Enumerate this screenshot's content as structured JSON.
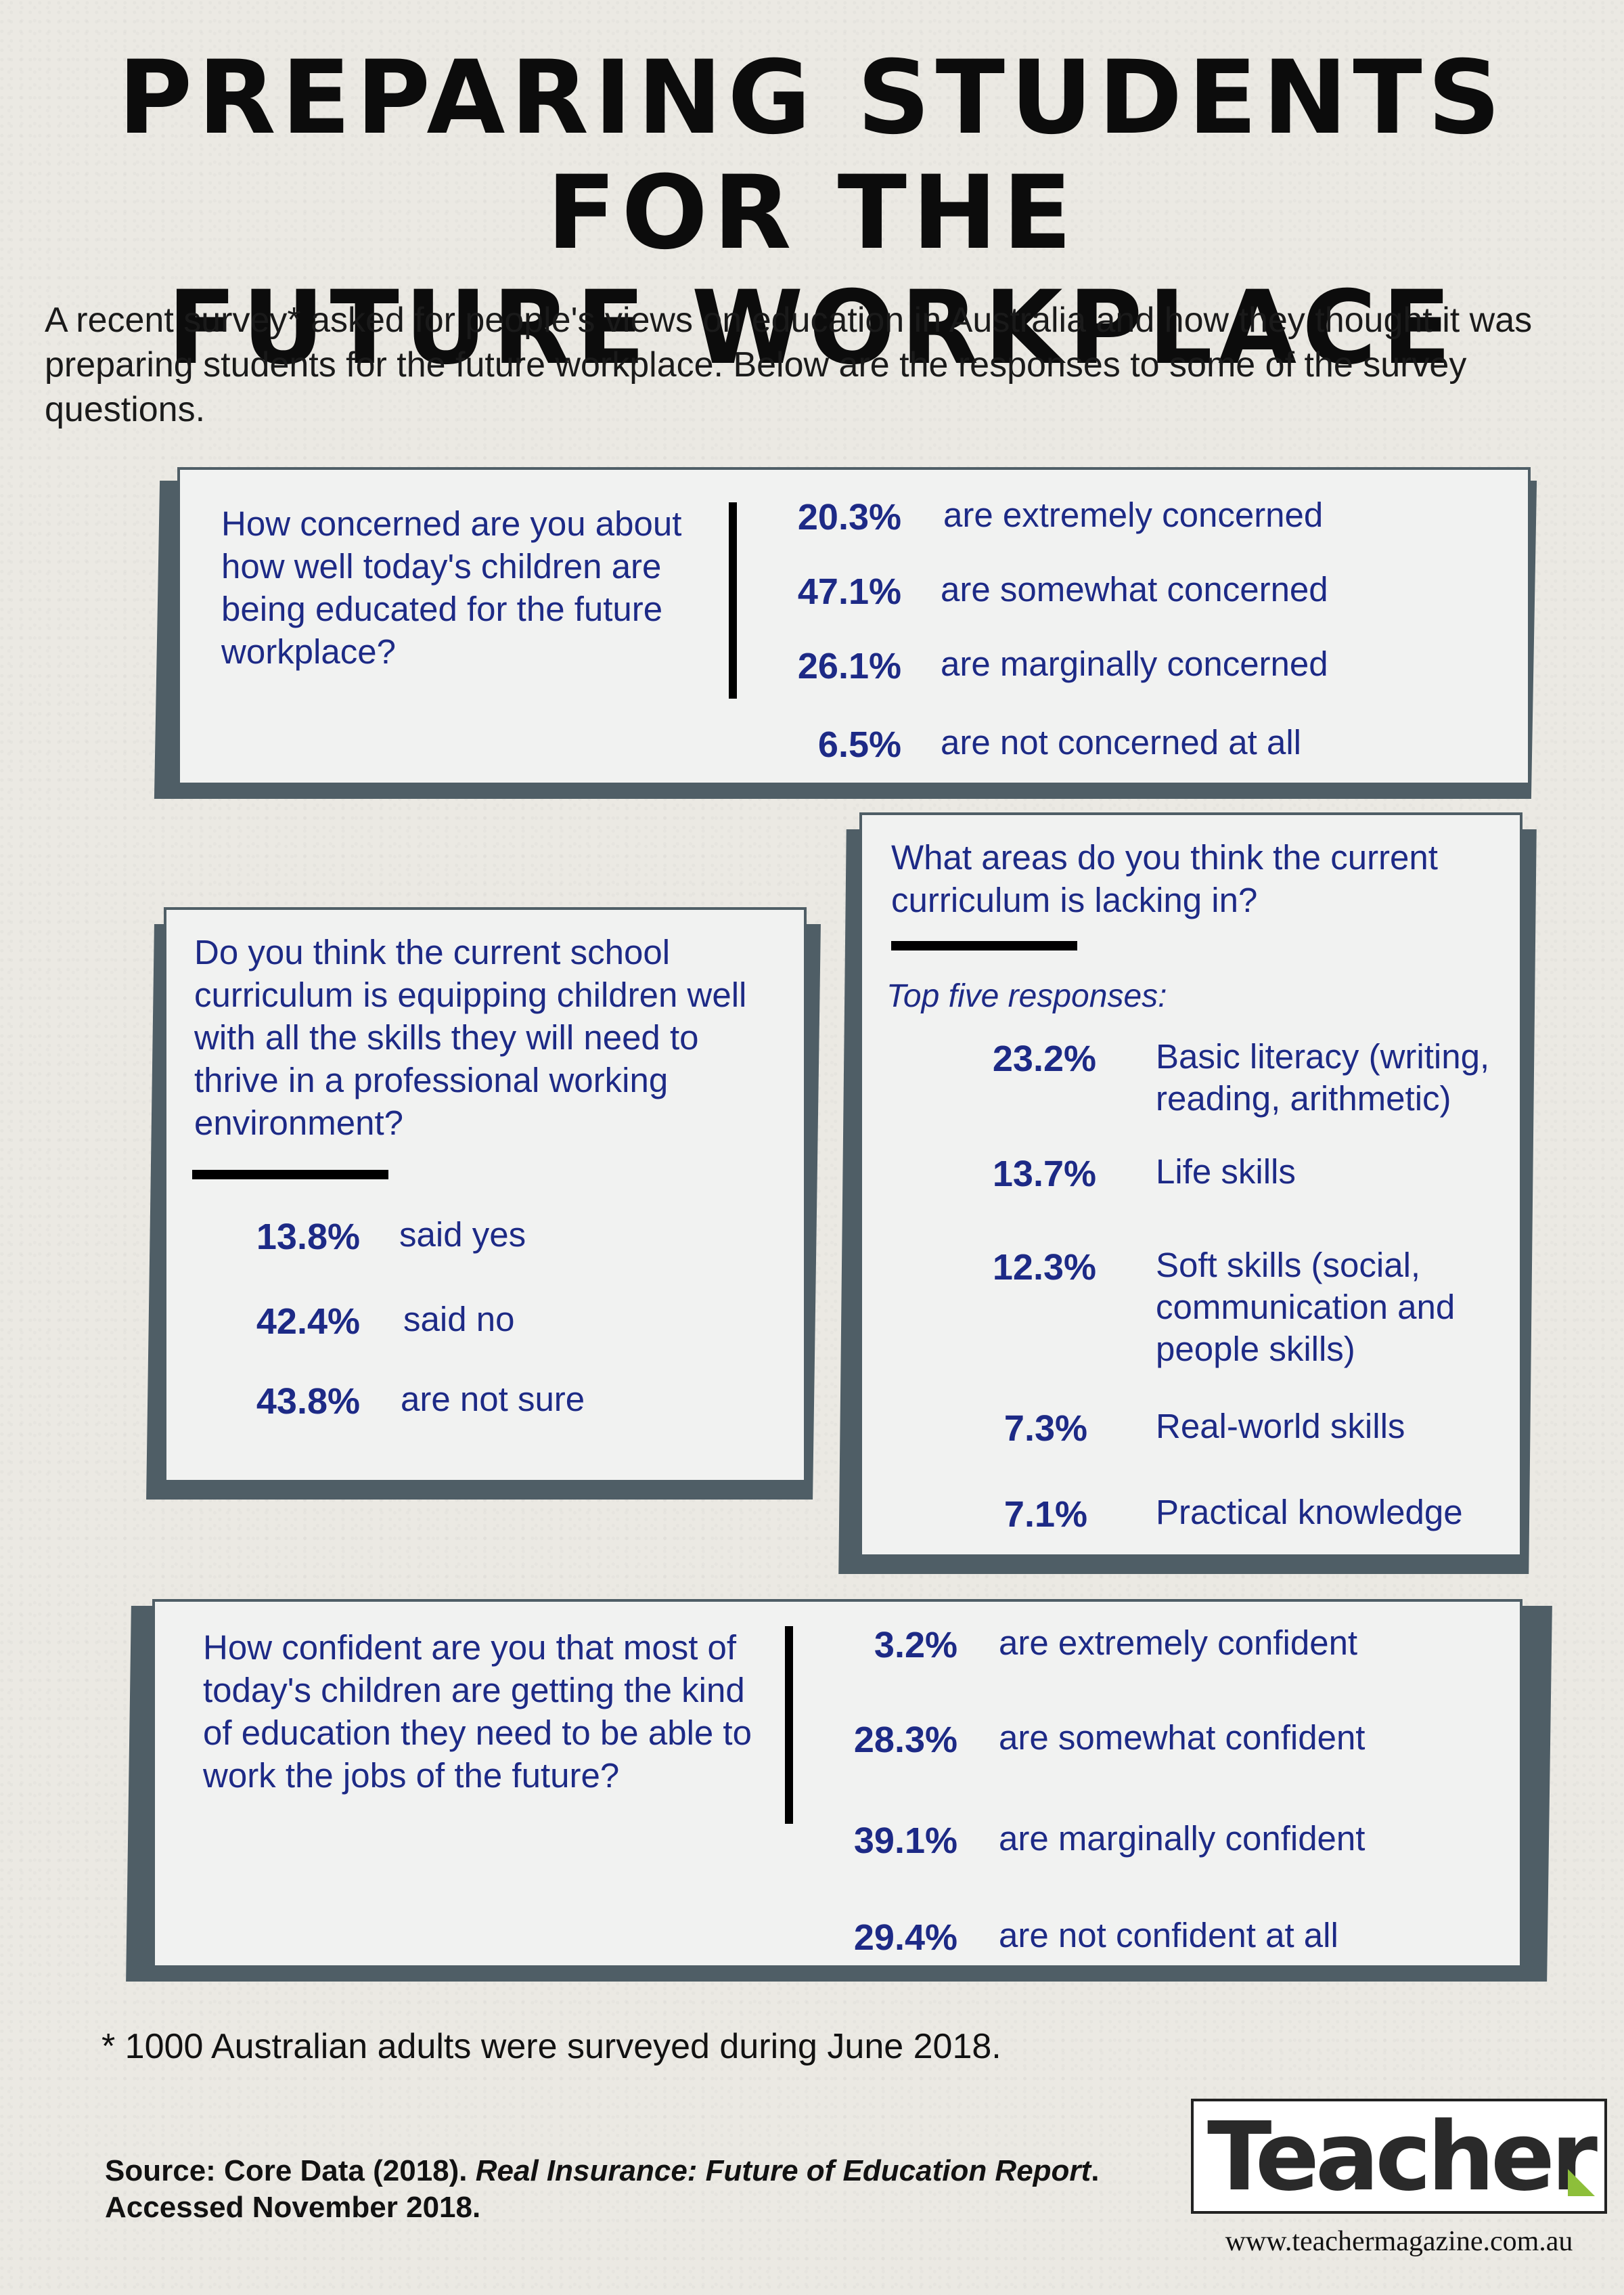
{
  "title": {
    "line1": "PREPARING STUDENTS FOR THE",
    "line2": "FUTURE WORKPLACE"
  },
  "intro": "A recent survey* asked for people's views on education in Australia and how they thought it was preparing students for the future workplace. Below are the responses to some of the survey questions.",
  "concern": {
    "question": "How concerned are you about how well today's children are being educated for the future workplace?",
    "responses": [
      {
        "pct": "20.3%",
        "label": "are extremely concerned"
      },
      {
        "pct": "47.1%",
        "label": "are somewhat concerned"
      },
      {
        "pct": "26.1%",
        "label": "are marginally concerned"
      },
      {
        "pct": "6.5%",
        "label": "are not concerned at all"
      }
    ]
  },
  "equipping": {
    "question": "Do you think the current school curriculum is equipping children well with all the skills they will need to thrive in a professional working environment?",
    "responses": [
      {
        "pct": "13.8%",
        "label": "said yes"
      },
      {
        "pct": "42.4%",
        "label": "said no"
      },
      {
        "pct": "43.8%",
        "label": "are not sure"
      }
    ]
  },
  "lacking": {
    "question": "What areas do you think the current curriculum is lacking in?",
    "subhead": "Top five responses:",
    "responses": [
      {
        "pct": "23.2%",
        "label": "Basic literacy (writing, reading, arithmetic)"
      },
      {
        "pct": "13.7%",
        "label": "Life skills"
      },
      {
        "pct": "12.3%",
        "label": "Soft skills (social, communication and people skills)"
      },
      {
        "pct": "7.3%",
        "label": "Real-world skills"
      },
      {
        "pct": "7.1%",
        "label": "Practical knowledge"
      }
    ]
  },
  "confident": {
    "question": "How confident are you that most of today's children are getting the kind of education they need to be able to work the jobs of the future?",
    "responses": [
      {
        "pct": "3.2%",
        "label": "are extremely confident"
      },
      {
        "pct": "28.3%",
        "label": "are somewhat confident"
      },
      {
        "pct": "39.1%",
        "label": "are marginally confident"
      },
      {
        "pct": "29.4%",
        "label": "are not confident at all"
      }
    ]
  },
  "footnote": "* 1000 Australian adults were surveyed during June 2018.",
  "source": {
    "prefix": "Source: Core Data (2018).",
    "report": "Real Insurance: Future of Education Report",
    "suffix": ".",
    "accessed": "Accessed November 2018."
  },
  "logo": {
    "text": "Teacher",
    "url": "www.teachermagazine.com.au",
    "accent_color": "#8dbf3a"
  },
  "colors": {
    "question_text": "#1d2a86",
    "card_shadow": "#4f5e66",
    "card_face": "#f1f2f1"
  }
}
